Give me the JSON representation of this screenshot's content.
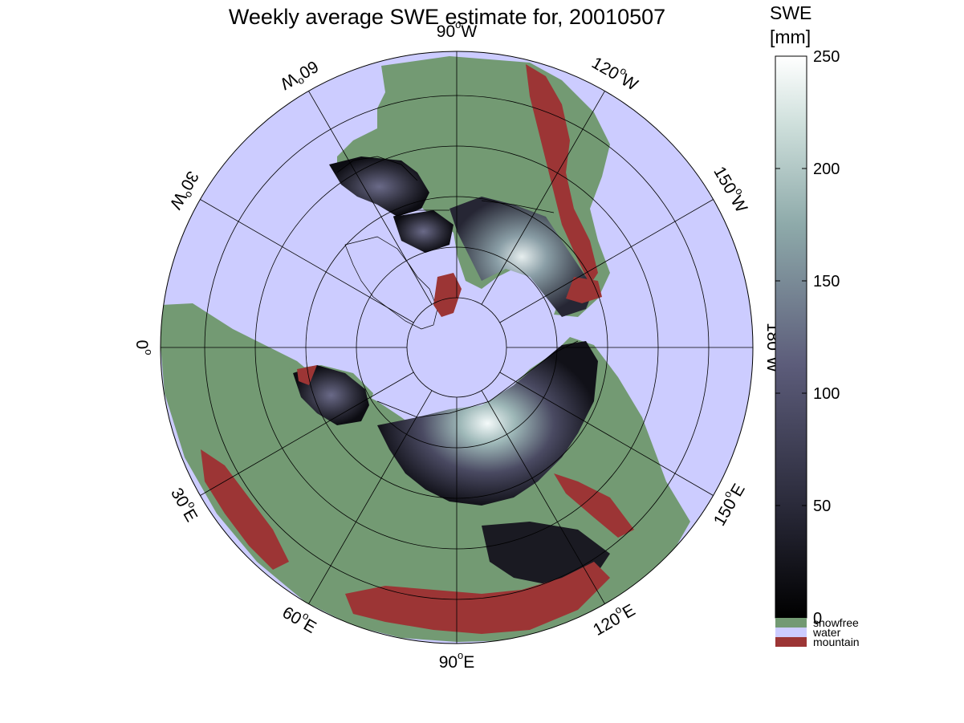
{
  "title": "Weekly average SWE estimate for, 20010507",
  "colors": {
    "water": "#ccccff",
    "snowfree": "#739a73",
    "mountain": "#9c3535",
    "coast": "#000000",
    "swe_low": "#000000",
    "swe_mid": "#5a5a78",
    "swe_high_mid": "#94b4b4",
    "swe_high": "#ffffff"
  },
  "longitude_labels": [
    {
      "deg": "90",
      "sup": "o",
      "dir": "W"
    },
    {
      "deg": "120",
      "sup": "o",
      "dir": "W"
    },
    {
      "deg": "150",
      "sup": "o",
      "dir": "W"
    },
    {
      "deg": "180",
      "sup": "o",
      "dir": "W"
    },
    {
      "deg": "150",
      "sup": "o",
      "dir": "E"
    },
    {
      "deg": "120",
      "sup": "o",
      "dir": "E"
    },
    {
      "deg": "90",
      "sup": "o",
      "dir": "E"
    },
    {
      "deg": "60",
      "sup": "o",
      "dir": "E"
    },
    {
      "deg": "30",
      "sup": "o",
      "dir": "E"
    },
    {
      "deg": "0",
      "sup": "o",
      "dir": ""
    },
    {
      "deg": "30",
      "sup": "o",
      "dir": "W"
    },
    {
      "deg": "60",
      "sup": "o",
      "dir": "W"
    }
  ],
  "colorbar": {
    "label_line1": "SWE",
    "label_line2": "[mm]",
    "min": 0,
    "max": 250,
    "ticks": [
      "0",
      "50",
      "100",
      "150",
      "200",
      "250"
    ],
    "tick_values": [
      0,
      50,
      100,
      150,
      200,
      250
    ]
  },
  "legend": [
    {
      "label": "snowfree",
      "color": "#739a73"
    },
    {
      "label": "water",
      "color": "#ccccff"
    },
    {
      "label": "mountain",
      "color": "#9c3535"
    }
  ]
}
